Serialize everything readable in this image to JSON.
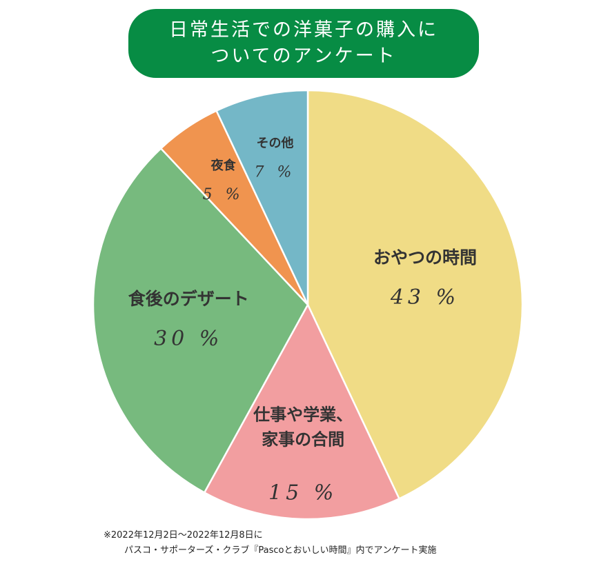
{
  "title": {
    "line1": "日常生活での洋菓子の購入に",
    "line2": "ついてのアンケート"
  },
  "chart_data": {
    "type": "pie",
    "slices": [
      {
        "label_lines": [
          "おやつの時間"
        ],
        "value": 43,
        "value_label": "43 %",
        "color": "#f0dc86"
      },
      {
        "label_lines": [
          "仕事や学業、",
          "家事の合間"
        ],
        "value": 15,
        "value_label": "15 %",
        "color": "#f29ea0"
      },
      {
        "label_lines": [
          "食後のデザート"
        ],
        "value": 30,
        "value_label": "30 %",
        "color": "#77ba7e"
      },
      {
        "label_lines": [
          "夜食"
        ],
        "value": 5,
        "value_label": "5 %",
        "color": "#f0944f"
      },
      {
        "label_lines": [
          "その他"
        ],
        "value": 7,
        "value_label": "7 %",
        "color": "#74b7c7"
      }
    ],
    "start": "12 o'clock",
    "direction": "clockwise"
  },
  "note": {
    "line1": "※2022年12月2日〜2022年12月8日に",
    "line2": "パスコ・サポーターズ・クラブ『Pascoとおいしい時間』内でアンケート実施"
  }
}
